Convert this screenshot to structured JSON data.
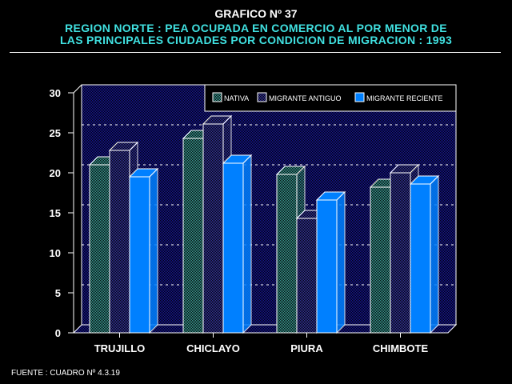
{
  "header": {
    "title": "GRAFICO Nº 37",
    "subtitle_line1": "REGION NORTE : PEA OCUPADA EN COMERCIO AL POR MENOR DE",
    "subtitle_line2": "LAS PRINCIPALES CIUDADES POR CONDICION DE MIGRACION : 1993"
  },
  "source": "FUENTE : CUADRO Nº 4.3.19",
  "chart_data": {
    "type": "bar",
    "title": "REGION NORTE : PEA OCUPADA EN COMERCIO AL POR MENOR DE LAS PRINCIPALES CIUDADES POR CONDICION DE MIGRACION : 1993",
    "categories": [
      "TRUJILLO",
      "CHICLAYO",
      "PIURA",
      "CHIMBOTE"
    ],
    "series": [
      {
        "name": "NATIVA",
        "values": [
          21.0,
          24.3,
          19.8,
          18.2
        ],
        "color": "#40a8a0"
      },
      {
        "name": "MIGRANTE ANTIGUO",
        "values": [
          22.8,
          26.1,
          14.3,
          20.0
        ],
        "color": "#3838a8"
      },
      {
        "name": "MIGRANTE RECIENTE",
        "values": [
          19.5,
          21.2,
          16.6,
          18.6
        ],
        "color": "#0080ff"
      }
    ],
    "yticks": [
      "0",
      "5",
      "10",
      "15",
      "20",
      "25",
      "30"
    ],
    "ylim": [
      0,
      30
    ],
    "xlabel": "",
    "ylabel": "",
    "grid": true,
    "legend": "top-right"
  }
}
